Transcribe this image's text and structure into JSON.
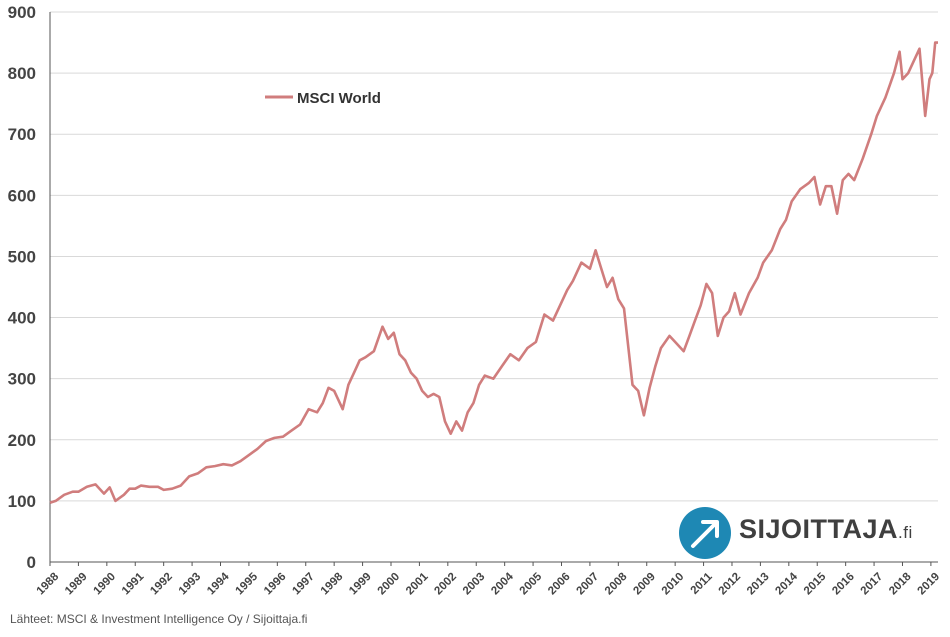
{
  "chart_data": {
    "type": "line",
    "title": "",
    "xlabel": "",
    "ylabel": "",
    "ylim": [
      0,
      900
    ],
    "yticks": [
      0,
      100,
      200,
      300,
      400,
      500,
      600,
      700,
      800,
      900
    ],
    "xlim": [
      1988,
      2019.25
    ],
    "xticks": [
      "1988",
      "1989",
      "1990",
      "1991",
      "1992",
      "1993",
      "1994",
      "1995",
      "1996",
      "1997",
      "1998",
      "1999",
      "2000",
      "2001",
      "2002",
      "2003",
      "2004",
      "2005",
      "2006",
      "2007",
      "2008",
      "2009",
      "2010",
      "2011",
      "2012",
      "2013",
      "2014",
      "2015",
      "2016",
      "2017",
      "2018",
      "2019"
    ],
    "grid": "horizontal",
    "legend_position": "top-left",
    "series": [
      {
        "name": "MSCI World",
        "color": "#d07d7d",
        "x": [
          1988.0,
          1988.2,
          1988.5,
          1988.8,
          1989.0,
          1989.3,
          1989.6,
          1989.9,
          1990.1,
          1990.3,
          1990.6,
          1990.8,
          1991.0,
          1991.2,
          1991.5,
          1991.8,
          1992.0,
          1992.3,
          1992.6,
          1992.9,
          1993.2,
          1993.5,
          1993.8,
          1994.1,
          1994.4,
          1994.7,
          1995.0,
          1995.3,
          1995.6,
          1995.9,
          1996.2,
          1996.5,
          1996.8,
          1997.1,
          1997.4,
          1997.6,
          1997.8,
          1998.0,
          1998.3,
          1998.5,
          1998.7,
          1998.9,
          1999.1,
          1999.4,
          1999.7,
          1999.9,
          2000.1,
          2000.3,
          2000.5,
          2000.7,
          2000.9,
          2001.1,
          2001.3,
          2001.5,
          2001.7,
          2001.9,
          2002.1,
          2002.3,
          2002.5,
          2002.7,
          2002.9,
          2003.1,
          2003.3,
          2003.6,
          2003.9,
          2004.2,
          2004.5,
          2004.8,
          2005.1,
          2005.4,
          2005.7,
          2006.0,
          2006.2,
          2006.4,
          2006.7,
          2007.0,
          2007.2,
          2007.4,
          2007.6,
          2007.8,
          2008.0,
          2008.2,
          2008.5,
          2008.7,
          2008.9,
          2009.1,
          2009.3,
          2009.5,
          2009.8,
          2010.0,
          2010.3,
          2010.5,
          2010.7,
          2010.9,
          2011.1,
          2011.3,
          2011.5,
          2011.7,
          2011.9,
          2012.1,
          2012.3,
          2012.6,
          2012.9,
          2013.1,
          2013.4,
          2013.7,
          2013.9,
          2014.1,
          2014.4,
          2014.7,
          2014.9,
          2015.1,
          2015.3,
          2015.5,
          2015.7,
          2015.9,
          2016.1,
          2016.3,
          2016.6,
          2016.9,
          2017.1,
          2017.4,
          2017.7,
          2017.9,
          2018.0,
          2018.2,
          2018.4,
          2018.6,
          2018.8,
          2018.95,
          2019.05,
          2019.15,
          2019.25
        ],
        "values": [
          97,
          100,
          110,
          115,
          115,
          123,
          127,
          112,
          122,
          100,
          110,
          120,
          120,
          125,
          123,
          123,
          118,
          120,
          125,
          140,
          145,
          155,
          157,
          160,
          158,
          165,
          175,
          185,
          198,
          203,
          205,
          215,
          225,
          250,
          245,
          260,
          285,
          280,
          250,
          290,
          310,
          330,
          335,
          345,
          385,
          365,
          375,
          340,
          330,
          310,
          300,
          280,
          270,
          275,
          270,
          230,
          210,
          230,
          215,
          245,
          260,
          290,
          305,
          300,
          320,
          340,
          330,
          350,
          360,
          405,
          395,
          425,
          445,
          460,
          490,
          480,
          510,
          480,
          450,
          465,
          430,
          415,
          290,
          280,
          240,
          285,
          320,
          350,
          370,
          360,
          345,
          370,
          395,
          420,
          455,
          440,
          370,
          400,
          410,
          440,
          405,
          440,
          465,
          490,
          510,
          545,
          560,
          590,
          610,
          620,
          630,
          585,
          615,
          615,
          570,
          625,
          635,
          625,
          660,
          700,
          730,
          760,
          800,
          835,
          790,
          800,
          820,
          840,
          730,
          790,
          800,
          850,
          850
        ]
      }
    ],
    "legend": [
      "MSCI World"
    ]
  },
  "source_text": "Lähteet: MSCI & Investment Intelligence Oy / Sijoittaja.fi",
  "logo": {
    "name": "SIJOITTAJA",
    "suffix": ".fi",
    "color": "#1e88b4"
  }
}
